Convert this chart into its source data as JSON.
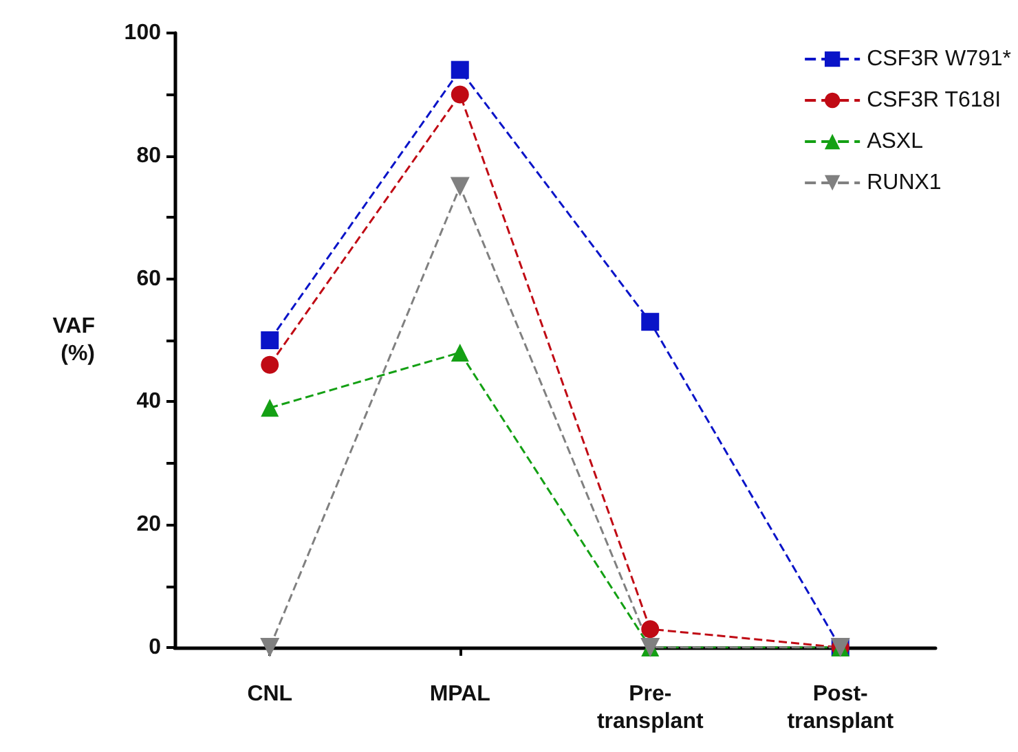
{
  "chart_data": {
    "type": "line",
    "xlabel": null,
    "ylabel": "VAF\n(%)",
    "categories": [
      "CNL",
      "MPAL",
      "Pre-\ntransplant",
      "Post-\ntransplant"
    ],
    "series": [
      {
        "name": "CSF3R W791*",
        "color": "#0a14c8",
        "marker": "square",
        "values": [
          50,
          94,
          53,
          0
        ]
      },
      {
        "name": "CSF3R T618I",
        "color": "#c00a14",
        "marker": "circle",
        "values": [
          46,
          90,
          3,
          0
        ]
      },
      {
        "name": "ASXL",
        "color": "#14a014",
        "marker": "triangle",
        "values": [
          39,
          48,
          0,
          0
        ]
      },
      {
        "name": "RUNX1",
        "color": "#808080",
        "marker": "triangle-down",
        "values": [
          0,
          75,
          0,
          0
        ]
      }
    ],
    "ylim": [
      0,
      100
    ],
    "yticks": [
      0,
      {
        "value": 10,
        "label": null
      },
      20,
      {
        "value": 30,
        "label": null
      },
      40,
      {
        "value": 50,
        "label": null
      },
      60,
      {
        "value": 70,
        "label": null
      },
      80,
      {
        "value": 90,
        "label": null
      },
      100
    ],
    "grid": false,
    "legend": "top right",
    "line_style": "dashed"
  }
}
